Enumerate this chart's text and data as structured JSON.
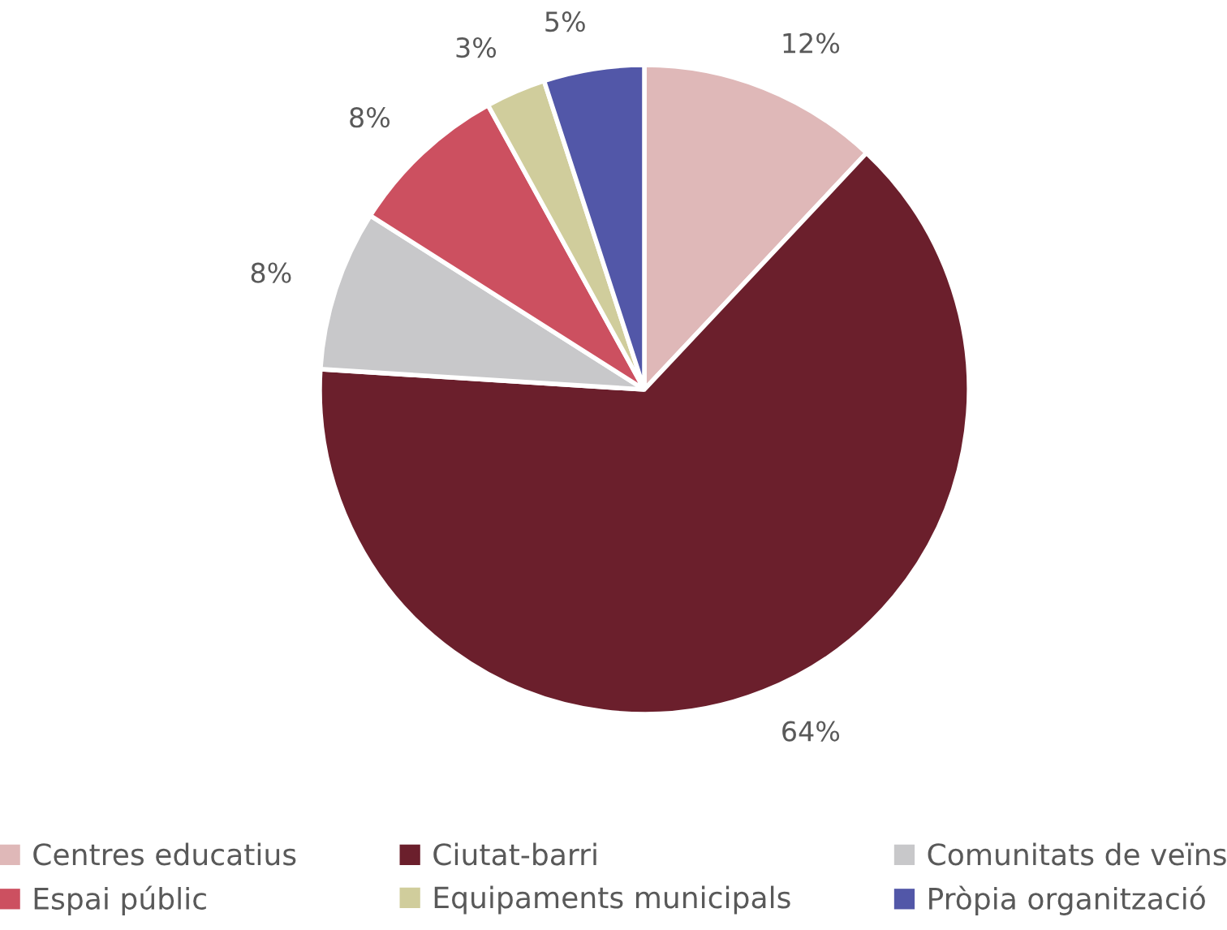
{
  "chart_data": {
    "type": "pie",
    "categories": [
      "Centres educatius",
      "Ciutat-barri",
      "Comunitats de veïns",
      "Espai públic",
      "Equipaments municipals",
      "Pròpia organització"
    ],
    "values": [
      12,
      64,
      8,
      8,
      3,
      5
    ],
    "value_labels": [
      "12%",
      "64%",
      "8%",
      "8%",
      "3%",
      "5%"
    ],
    "colors": [
      "#dfb8b8",
      "#6b1f2c",
      "#c8c8ca",
      "#cc5060",
      "#d0cd9c",
      "#5257a8"
    ],
    "legend": "bottom"
  }
}
